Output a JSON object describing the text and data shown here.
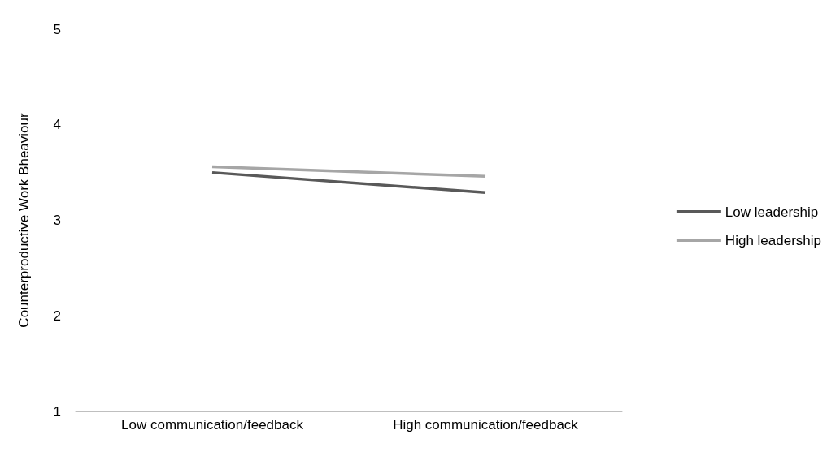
{
  "chart_data": {
    "type": "line",
    "ylabel": "Counterproductive Work Bheaviour",
    "categories": [
      "Low communication/feedback",
      "High communication/feedback"
    ],
    "series": [
      {
        "name": "Low leadership",
        "color": "#595959",
        "values": [
          3.5,
          3.29
        ]
      },
      {
        "name": "High leadership",
        "color": "#a6a6a6",
        "values": [
          3.56,
          3.46
        ]
      }
    ],
    "ylim": [
      1,
      5
    ],
    "yticks": [
      1,
      2,
      3,
      4,
      5
    ],
    "grid": false,
    "legend": "right",
    "marker": "none"
  }
}
